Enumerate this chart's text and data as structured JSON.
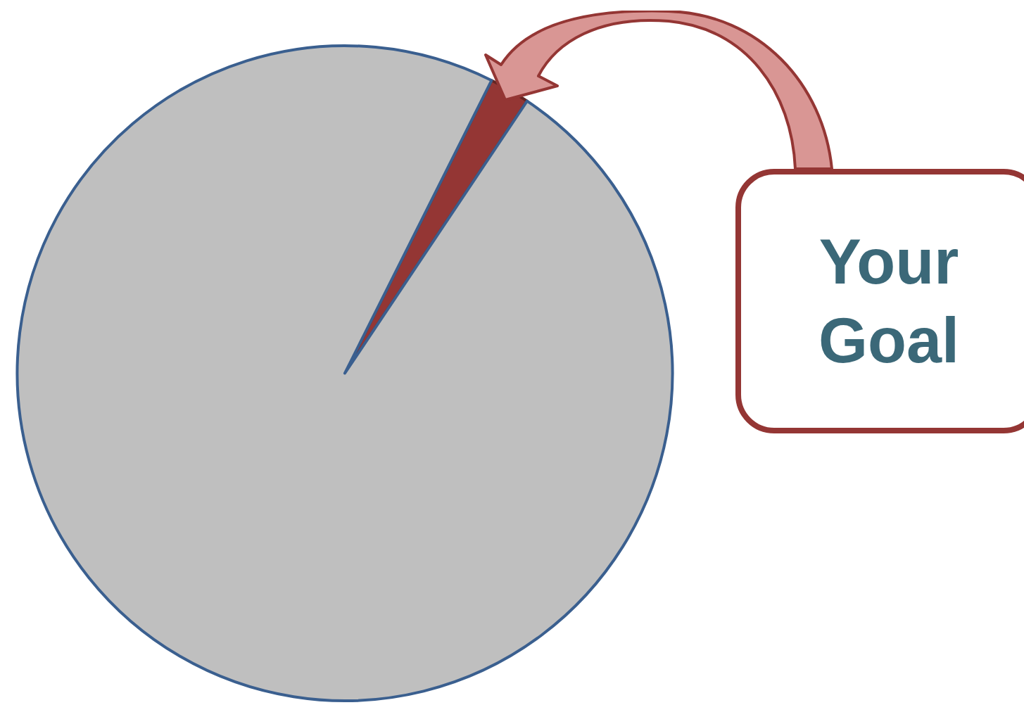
{
  "chart_data": {
    "type": "pie",
    "categories": [
      null,
      null
    ],
    "values": [
      2,
      98
    ],
    "colors": [
      "#943634",
      "#bfbfbf"
    ],
    "legend": false,
    "annotations": [
      "Your Goal"
    ]
  }
}
